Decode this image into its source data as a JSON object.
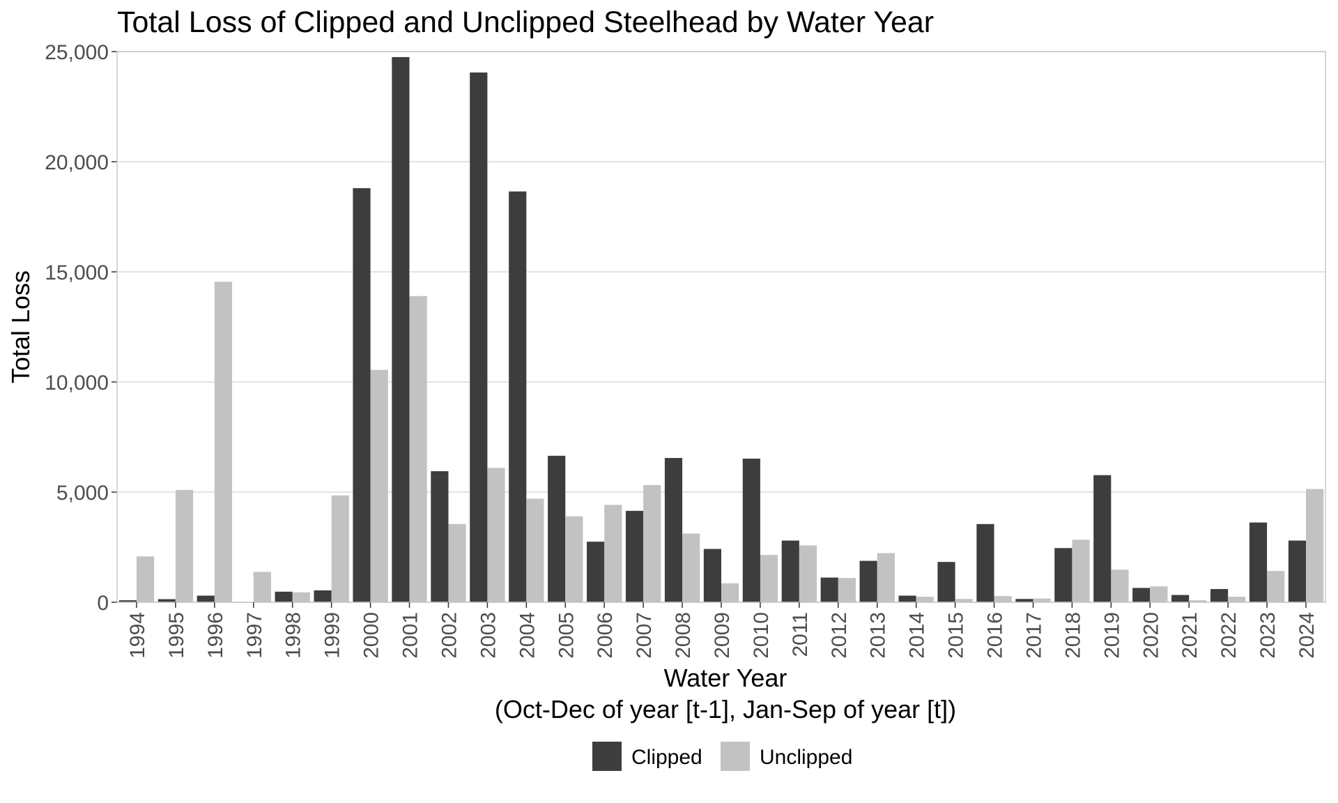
{
  "chart_data": {
    "type": "bar",
    "title": "Total Loss of Clipped and Unclipped Steelhead by Water Year",
    "xlabel": "Water Year",
    "xlabel_sub": "(Oct-Dec of year [t-1], Jan-Sep of year [t])",
    "ylabel": "Total Loss",
    "ylim": [
      0,
      25000
    ],
    "yticks": [
      0,
      5000,
      10000,
      15000,
      20000,
      25000
    ],
    "ytick_labels": [
      "0",
      "5,000",
      "10,000",
      "15,000",
      "20,000",
      "25,000"
    ],
    "grid": "horizontal",
    "legend_position": "bottom",
    "categories": [
      "1994",
      "1995",
      "1996",
      "1997",
      "1998",
      "1999",
      "2000",
      "2001",
      "2002",
      "2003",
      "2004",
      "2005",
      "2006",
      "2007",
      "2008",
      "2009",
      "2010",
      "2011",
      "2012",
      "2013",
      "2014",
      "2015",
      "2016",
      "2017",
      "2018",
      "2019",
      "2020",
      "2021",
      "2022",
      "2023",
      "2024"
    ],
    "series": [
      {
        "name": "Clipped",
        "color": "#3d3d3d",
        "values": [
          90,
          140,
          300,
          0,
          480,
          540,
          18800,
          24750,
          5950,
          24050,
          18650,
          6650,
          2750,
          4150,
          6550,
          2420,
          6520,
          2800,
          1120,
          1880,
          300,
          1830,
          3550,
          150,
          2460,
          5770,
          650,
          330,
          600,
          3620,
          2800
        ]
      },
      {
        "name": "Unclipped",
        "color": "#c2c2c2",
        "values": [
          2080,
          5100,
          14550,
          1380,
          450,
          4850,
          10550,
          13900,
          3550,
          6100,
          4700,
          3900,
          4420,
          5320,
          3120,
          860,
          2150,
          2580,
          1100,
          2230,
          250,
          150,
          280,
          170,
          2840,
          1480,
          720,
          90,
          250,
          1420,
          5140
        ]
      }
    ]
  }
}
